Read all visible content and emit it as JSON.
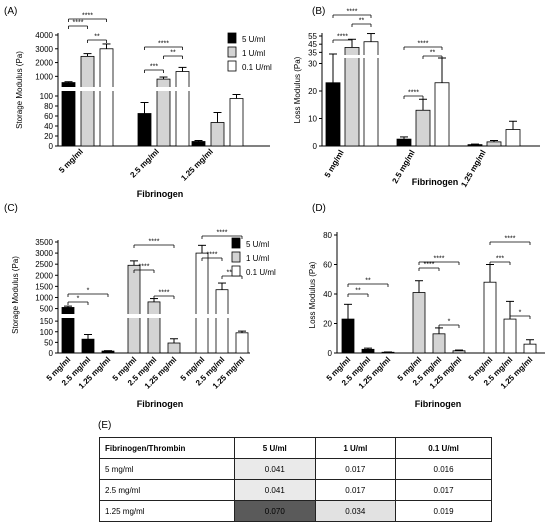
{
  "chart_data": [
    {
      "panel": "(A)",
      "type": "bar",
      "ylabel": "Storage Modulus (Pa)",
      "xlabel": "Fibrinogen",
      "yticks_lower": [
        0,
        20,
        40,
        60,
        80,
        100
      ],
      "yticks_upper": [
        1000,
        2000,
        3000,
        4000
      ],
      "ylim_lower": [
        0,
        110
      ],
      "ylim_upper": [
        300,
        4000
      ],
      "categories": [
        "5 mg/ml",
        "2.5 mg/ml",
        "1.25 mg/ml"
      ],
      "series": [
        {
          "name": "5 U/ml",
          "values": [
            550,
            65,
            9
          ],
          "errors": [
            60,
            22,
            2
          ]
        },
        {
          "name": "1 U/ml",
          "values": [
            2450,
            800,
            47
          ],
          "errors": [
            200,
            150,
            20
          ]
        },
        {
          "name": "0.1 U/ml",
          "values": [
            3000,
            1350,
            95
          ],
          "errors": [
            350,
            300,
            8
          ]
        }
      ],
      "significance": [
        {
          "from": [
            0,
            0
          ],
          "to": [
            0,
            1
          ],
          "label": "****"
        },
        {
          "from": [
            0,
            0
          ],
          "to": [
            0,
            2
          ],
          "label": "****"
        },
        {
          "from": [
            0,
            1
          ],
          "to": [
            0,
            2
          ],
          "label": "**"
        },
        {
          "from": [
            1,
            0
          ],
          "to": [
            1,
            1
          ],
          "label": "***"
        },
        {
          "from": [
            1,
            0
          ],
          "to": [
            1,
            2
          ],
          "label": "****"
        },
        {
          "from": [
            1,
            1
          ],
          "to": [
            1,
            2
          ],
          "label": "**"
        }
      ]
    },
    {
      "panel": "(B)",
      "type": "bar",
      "ylabel": "Loss Modulus (Pa)",
      "xlabel": "Fibrinogen",
      "yticks_lower": [
        0,
        10,
        20,
        30
      ],
      "yticks_upper": [
        35,
        45,
        55
      ],
      "ylim_lower": [
        0,
        32
      ],
      "ylim_upper": [
        33,
        55
      ],
      "categories": [
        "5 mg/ml",
        "2.5 mg/ml",
        "1.25 mg/ml"
      ],
      "series": [
        {
          "name": "5 U/ml",
          "values": [
            23,
            2.5,
            0.5
          ],
          "errors": [
            10,
            0.8,
            0.2
          ]
        },
        {
          "name": "1 U/ml",
          "values": [
            41,
            13,
            1.5
          ],
          "errors": [
            10,
            4,
            0.5
          ]
        },
        {
          "name": "0.1 U/ml",
          "values": [
            48,
            23,
            6
          ],
          "errors": [
            10,
            9,
            3
          ]
        }
      ],
      "significance": [
        {
          "from": [
            0,
            0
          ],
          "to": [
            0,
            1
          ],
          "label": "****"
        },
        {
          "from": [
            0,
            0
          ],
          "to": [
            0,
            2
          ],
          "label": "****"
        },
        {
          "from": [
            0,
            1
          ],
          "to": [
            0,
            2
          ],
          "label": "**"
        },
        {
          "from": [
            1,
            0
          ],
          "to": [
            1,
            1
          ],
          "label": "****"
        },
        {
          "from": [
            1,
            0
          ],
          "to": [
            1,
            2
          ],
          "label": "****"
        },
        {
          "from": [
            1,
            1
          ],
          "to": [
            1,
            2
          ],
          "label": "**"
        }
      ]
    },
    {
      "panel": "(C)",
      "type": "bar",
      "ylabel": "Storage Modulus (Pa)",
      "xlabel": "Fibrinogen",
      "yticks_lower": [
        0,
        50,
        100,
        150
      ],
      "yticks_upper": [
        500,
        1000,
        1500,
        2000,
        2500,
        3000,
        3500
      ],
      "ylim_lower": [
        0,
        160
      ],
      "ylim_upper": [
        300,
        3500
      ],
      "categories": [
        "5 mg/ml",
        "2.5 mg/ml",
        "1.25 mg/ml"
      ],
      "groups": [
        {
          "name": "5 U/ml",
          "values": [
            550,
            65,
            9
          ],
          "errors": [
            60,
            22,
            2
          ]
        },
        {
          "name": "1 U/ml",
          "values": [
            2450,
            800,
            47
          ],
          "errors": [
            200,
            150,
            20
          ]
        },
        {
          "name": "0.1 U/ml",
          "values": [
            3000,
            1350,
            95
          ],
          "errors": [
            350,
            300,
            8
          ]
        }
      ],
      "significance": [
        {
          "group": 0,
          "from": 0,
          "to": 1,
          "label": "*"
        },
        {
          "group": 0,
          "from": 0,
          "to": 2,
          "label": "*"
        },
        {
          "group": 1,
          "from": 0,
          "to": 1,
          "label": "****"
        },
        {
          "group": 1,
          "from": 0,
          "to": 2,
          "label": "****"
        },
        {
          "group": 1,
          "from": 1,
          "to": 2,
          "label": "****"
        },
        {
          "group": 2,
          "from": 0,
          "to": 1,
          "label": "****"
        },
        {
          "group": 2,
          "from": 0,
          "to": 2,
          "label": "****"
        },
        {
          "group": 2,
          "from": 1,
          "to": 2,
          "label": "****"
        }
      ]
    },
    {
      "panel": "(D)",
      "type": "bar",
      "ylabel": "Loss Modulus (Pa)",
      "xlabel": "Fibrinogen",
      "yticks": [
        0,
        20,
        40,
        60,
        80
      ],
      "ylim": [
        0,
        80
      ],
      "categories": [
        "5 mg/ml",
        "2.5 mg/ml",
        "1.25 mg/ml"
      ],
      "groups": [
        {
          "name": "5 U/ml",
          "values": [
            23,
            2.5,
            0.5
          ],
          "errors": [
            10,
            0.8,
            0.2
          ]
        },
        {
          "name": "1 U/ml",
          "values": [
            41,
            13,
            1.5
          ],
          "errors": [
            8,
            4,
            0.5
          ]
        },
        {
          "name": "0.1 U/ml",
          "values": [
            48,
            23,
            6
          ],
          "errors": [
            12,
            12,
            3
          ]
        }
      ],
      "significance": [
        {
          "group": 0,
          "from": 0,
          "to": 1,
          "label": "**"
        },
        {
          "group": 0,
          "from": 0,
          "to": 2,
          "label": "**"
        },
        {
          "group": 1,
          "from": 0,
          "to": 1,
          "label": "****"
        },
        {
          "group": 1,
          "from": 0,
          "to": 2,
          "label": "****"
        },
        {
          "group": 1,
          "from": 1,
          "to": 2,
          "label": "*"
        },
        {
          "group": 2,
          "from": 0,
          "to": 1,
          "label": "***"
        },
        {
          "group": 2,
          "from": 0,
          "to": 2,
          "label": "****"
        },
        {
          "group": 2,
          "from": 1,
          "to": 2,
          "label": "*"
        }
      ]
    },
    {
      "panel": "(E)",
      "type": "table",
      "headers": [
        "Fibrinogen/Thrombin",
        "5 U/ml",
        "1 U/ml",
        "0.1 U/ml"
      ],
      "rows": [
        [
          "5 mg/ml",
          "0.041",
          "0.017",
          "0.016"
        ],
        [
          "2.5 mg/ml",
          "0.041",
          "0.017",
          "0.017"
        ],
        [
          "1.25 mg/ml",
          "0.070",
          "0.034",
          "0.019"
        ]
      ],
      "shading": [
        [
          "light",
          "none",
          "none"
        ],
        [
          "light",
          "none",
          "none"
        ],
        [
          "dark",
          "light",
          "none"
        ]
      ]
    }
  ],
  "colors": {
    "s5": "#000000",
    "s1": "#d4d4d4",
    "s01": "#ffffff",
    "light": "#eaeaea",
    "dark": "#5a5a5a"
  }
}
